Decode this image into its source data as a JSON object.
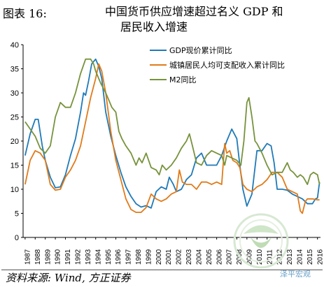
{
  "title": {
    "label": "图表 16:",
    "line1": "中国货币供应增速超过名义 GDP 和",
    "line2": "居民收入增速"
  },
  "source": "资料来源: Wind, 方正证券",
  "watermark": "泽平宏观",
  "chart_data": {
    "type": "line",
    "x_tick_labels": [
      "1987",
      "1988",
      "1989",
      "1990",
      "1991",
      "1992",
      "1993",
      "1994",
      "1995",
      "1996",
      "1997",
      "1998",
      "1999",
      "2000",
      "2001",
      "2002",
      "2003",
      "2004",
      "2005",
      "2006",
      "2007",
      "2008",
      "2009",
      "2010",
      "2011",
      "2012",
      "2013",
      "2014",
      "2015",
      "2016"
    ],
    "xlim": [
      1986.8,
      2016.3
    ],
    "y_ticks": [
      0,
      5,
      10,
      15,
      20,
      25,
      30,
      35,
      40
    ],
    "ylim": [
      0,
      40
    ],
    "legend_position": "top-right",
    "grid": false,
    "series": [
      {
        "name": "GDP现价累计同比",
        "color": "#1f7ab8",
        "points": [
          [
            1987.0,
            17.0
          ],
          [
            1987.5,
            21.5
          ],
          [
            1988.0,
            24.5
          ],
          [
            1988.3,
            24.5
          ],
          [
            1988.7,
            19.0
          ],
          [
            1989.0,
            16.0
          ],
          [
            1989.5,
            12.5
          ],
          [
            1990.0,
            10.3
          ],
          [
            1990.5,
            10.5
          ],
          [
            1991.0,
            13.0
          ],
          [
            1991.5,
            17.0
          ],
          [
            1992.0,
            20.5
          ],
          [
            1992.5,
            26.0
          ],
          [
            1992.8,
            30.0
          ],
          [
            1993.0,
            29.5
          ],
          [
            1993.3,
            32.5
          ],
          [
            1993.6,
            36.0
          ],
          [
            1994.0,
            37.0
          ],
          [
            1994.3,
            35.5
          ],
          [
            1994.6,
            33.0
          ],
          [
            1995.0,
            26.0
          ],
          [
            1995.5,
            21.0
          ],
          [
            1996.0,
            17.0
          ],
          [
            1996.5,
            13.5
          ],
          [
            1997.0,
            10.5
          ],
          [
            1997.5,
            8.5
          ],
          [
            1998.0,
            7.0
          ],
          [
            1998.5,
            6.3
          ],
          [
            1999.0,
            6.6
          ],
          [
            1999.5,
            6.1
          ],
          [
            2000.0,
            9.5
          ],
          [
            2000.5,
            10.5
          ],
          [
            2001.0,
            10.0
          ],
          [
            2001.3,
            12.5
          ],
          [
            2001.7,
            11.0
          ],
          [
            2002.0,
            9.5
          ],
          [
            2002.5,
            10.0
          ],
          [
            2003.0,
            12.0
          ],
          [
            2003.5,
            13.0
          ],
          [
            2004.0,
            16.5
          ],
          [
            2004.5,
            17.5
          ],
          [
            2005.0,
            15.0
          ],
          [
            2005.5,
            15.0
          ],
          [
            2006.0,
            15.0
          ],
          [
            2006.5,
            17.0
          ],
          [
            2007.0,
            20.0
          ],
          [
            2007.5,
            22.5
          ],
          [
            2008.0,
            20.5
          ],
          [
            2008.3,
            15.0
          ],
          [
            2008.6,
            10.0
          ],
          [
            2009.0,
            6.5
          ],
          [
            2009.5,
            9.0
          ],
          [
            2009.8,
            14.5
          ],
          [
            2010.0,
            18.0
          ],
          [
            2010.5,
            18.0
          ],
          [
            2011.0,
            19.5
          ],
          [
            2011.4,
            19.0
          ],
          [
            2011.7,
            15.5
          ],
          [
            2012.0,
            10.0
          ],
          [
            2012.5,
            10.0
          ],
          [
            2013.0,
            9.8
          ],
          [
            2013.5,
            9.0
          ],
          [
            2014.0,
            8.5
          ],
          [
            2014.5,
            8.0
          ],
          [
            2015.0,
            7.0
          ],
          [
            2015.5,
            7.0
          ],
          [
            2015.8,
            8.0
          ],
          [
            2016.0,
            8.2
          ],
          [
            2016.2,
            11.5
          ]
        ]
      },
      {
        "name": "城镇居民人均可支配收入累计同比",
        "color": "#e07b1a",
        "points": [
          [
            1987.0,
            11.0
          ],
          [
            1987.5,
            16.0
          ],
          [
            1988.0,
            18.0
          ],
          [
            1988.5,
            17.5
          ],
          [
            1989.0,
            16.0
          ],
          [
            1989.5,
            11.0
          ],
          [
            1990.0,
            9.8
          ],
          [
            1990.5,
            10.0
          ],
          [
            1991.0,
            12.5
          ],
          [
            1991.5,
            14.0
          ],
          [
            1992.0,
            16.0
          ],
          [
            1992.5,
            19.0
          ],
          [
            1993.0,
            24.0
          ],
          [
            1993.5,
            29.0
          ],
          [
            1994.0,
            33.0
          ],
          [
            1994.3,
            36.0
          ],
          [
            1994.6,
            34.5
          ],
          [
            1995.0,
            30.0
          ],
          [
            1995.5,
            22.0
          ],
          [
            1996.0,
            16.0
          ],
          [
            1996.5,
            12.0
          ],
          [
            1997.0,
            8.0
          ],
          [
            1997.5,
            5.8
          ],
          [
            1998.0,
            5.2
          ],
          [
            1998.5,
            5.2
          ],
          [
            1999.0,
            6.2
          ],
          [
            1999.5,
            9.0
          ],
          [
            2000.0,
            8.0
          ],
          [
            2000.5,
            7.5
          ],
          [
            2001.0,
            8.0
          ],
          [
            2001.5,
            9.0
          ],
          [
            2002.0,
            9.5
          ],
          [
            2002.3,
            14.0
          ],
          [
            2002.6,
            11.5
          ],
          [
            2003.0,
            11.0
          ],
          [
            2003.5,
            11.0
          ],
          [
            2004.0,
            10.0
          ],
          [
            2004.5,
            11.5
          ],
          [
            2005.0,
            11.5
          ],
          [
            2005.5,
            11.0
          ],
          [
            2006.0,
            11.5
          ],
          [
            2006.5,
            11.0
          ],
          [
            2006.8,
            19.5
          ],
          [
            2007.0,
            17.5
          ],
          [
            2007.3,
            18.0
          ],
          [
            2007.6,
            16.0
          ],
          [
            2008.0,
            15.5
          ],
          [
            2008.3,
            14.5
          ],
          [
            2008.6,
            11.0
          ],
          [
            2009.0,
            10.0
          ],
          [
            2009.5,
            9.5
          ],
          [
            2010.0,
            10.5
          ],
          [
            2010.5,
            11.0
          ],
          [
            2011.0,
            12.0
          ],
          [
            2011.5,
            13.5
          ],
          [
            2012.0,
            13.5
          ],
          [
            2012.5,
            12.5
          ],
          [
            2013.0,
            10.0
          ],
          [
            2013.5,
            9.5
          ],
          [
            2014.0,
            9.0
          ],
          [
            2014.3,
            5.5
          ],
          [
            2014.5,
            5.0
          ],
          [
            2014.8,
            7.5
          ],
          [
            2015.0,
            8.0
          ],
          [
            2015.5,
            8.0
          ],
          [
            2016.0,
            7.8
          ],
          [
            2016.2,
            7.8
          ]
        ]
      },
      {
        "name": "M2同比",
        "color": "#77933c",
        "points": [
          [
            1987.0,
            24.0
          ],
          [
            1987.5,
            22.5
          ],
          [
            1988.0,
            21.0
          ],
          [
            1988.5,
            18.5
          ],
          [
            1989.0,
            17.5
          ],
          [
            1989.5,
            19.0
          ],
          [
            1990.0,
            25.0
          ],
          [
            1990.5,
            28.0
          ],
          [
            1991.0,
            27.0
          ],
          [
            1991.5,
            27.0
          ],
          [
            1992.0,
            30.0
          ],
          [
            1992.5,
            34.0
          ],
          [
            1993.0,
            37.0
          ],
          [
            1993.5,
            37.0
          ],
          [
            1993.8,
            36.0
          ],
          [
            1994.0,
            34.5
          ],
          [
            1994.5,
            32.0
          ],
          [
            1995.0,
            30.0
          ],
          [
            1995.3,
            28.5
          ],
          [
            1995.6,
            27.0
          ],
          [
            1996.0,
            26.0
          ],
          [
            1996.3,
            22.0
          ],
          [
            1996.6,
            20.5
          ],
          [
            1997.0,
            19.0
          ],
          [
            1997.5,
            17.5
          ],
          [
            1998.0,
            15.0
          ],
          [
            1998.3,
            16.5
          ],
          [
            1998.6,
            15.5
          ],
          [
            1999.0,
            17.5
          ],
          [
            1999.5,
            14.5
          ],
          [
            2000.0,
            14.0
          ],
          [
            2000.3,
            13.0
          ],
          [
            2000.6,
            15.0
          ],
          [
            2001.0,
            14.0
          ],
          [
            2001.5,
            15.0
          ],
          [
            2002.0,
            16.5
          ],
          [
            2002.5,
            18.5
          ],
          [
            2003.0,
            20.0
          ],
          [
            2003.3,
            21.5
          ],
          [
            2003.6,
            19.0
          ],
          [
            2004.0,
            15.5
          ],
          [
            2004.5,
            15.0
          ],
          [
            2005.0,
            17.0
          ],
          [
            2005.5,
            18.0
          ],
          [
            2006.0,
            17.5
          ],
          [
            2006.5,
            17.0
          ],
          [
            2006.8,
            15.0
          ],
          [
            2007.0,
            17.0
          ],
          [
            2007.5,
            16.5
          ],
          [
            2008.0,
            16.0
          ],
          [
            2008.4,
            15.0
          ],
          [
            2008.7,
            20.0
          ],
          [
            2009.0,
            28.0
          ],
          [
            2009.2,
            29.0
          ],
          [
            2009.5,
            25.0
          ],
          [
            2009.8,
            20.0
          ],
          [
            2010.0,
            19.5
          ],
          [
            2010.5,
            17.5
          ],
          [
            2011.0,
            15.0
          ],
          [
            2011.5,
            13.0
          ],
          [
            2012.0,
            13.5
          ],
          [
            2012.5,
            13.5
          ],
          [
            2013.0,
            15.5
          ],
          [
            2013.3,
            14.0
          ],
          [
            2013.6,
            13.5
          ],
          [
            2014.0,
            12.5
          ],
          [
            2014.3,
            13.0
          ],
          [
            2014.6,
            12.5
          ],
          [
            2015.0,
            11.0
          ],
          [
            2015.3,
            13.0
          ],
          [
            2015.6,
            13.5
          ],
          [
            2016.0,
            13.0
          ],
          [
            2016.2,
            11.0
          ]
        ]
      }
    ]
  }
}
